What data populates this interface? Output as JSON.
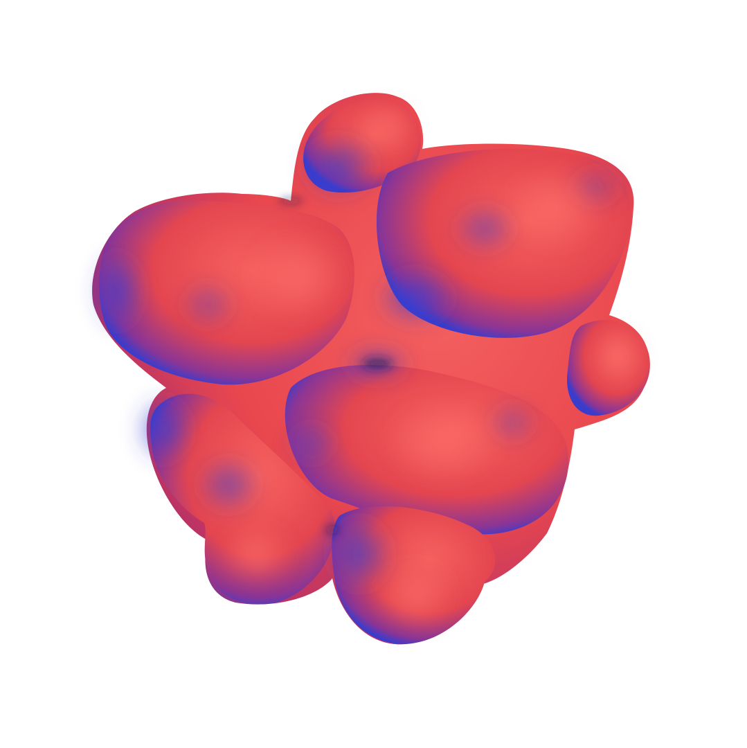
{
  "scene": {
    "background_color": "#ffffff",
    "subject": "molecular-surface",
    "colors": {
      "base": "#e8474e",
      "highlight": "#f2595c",
      "shadow": "#3b3fd0",
      "deep_shadow": "#2a2a9a"
    }
  }
}
